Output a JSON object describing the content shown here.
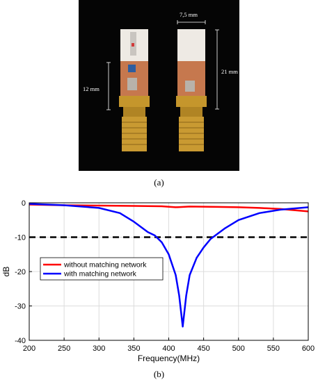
{
  "photo": {
    "caption": "(a)",
    "width_label": "7,5 mm",
    "height_left_label": "12 mm",
    "height_right_label": "21 mm"
  },
  "chart_caption": "(b)",
  "chart_data": {
    "type": "line",
    "xlabel": "Frequency(MHz)",
    "ylabel": "dB",
    "xlim": [
      200,
      600
    ],
    "ylim": [
      -40,
      0
    ],
    "xticks": [
      200,
      250,
      300,
      350,
      400,
      450,
      500,
      550,
      600
    ],
    "yticks": [
      0,
      -10,
      -20,
      -30,
      -40
    ],
    "grid": true,
    "legend_position": "middle-left",
    "reference_line": {
      "y": -10,
      "style": "dashed",
      "color": "#000000"
    },
    "series": [
      {
        "name": "without matching network",
        "color": "#ff0000",
        "x": [
          200,
          250,
          300,
          350,
          390,
          410,
          430,
          470,
          500,
          530,
          560,
          600
        ],
        "y": [
          -0.5,
          -0.7,
          -0.8,
          -0.9,
          -1.0,
          -1.3,
          -1.1,
          -1.2,
          -1.3,
          -1.5,
          -1.8,
          -2.5
        ]
      },
      {
        "name": "with matching network",
        "color": "#0000ff",
        "x": [
          200,
          250,
          300,
          330,
          350,
          370,
          380,
          390,
          400,
          410,
          415,
          420,
          425,
          430,
          440,
          450,
          460,
          480,
          500,
          530,
          560,
          600
        ],
        "y": [
          -0.3,
          -0.7,
          -1.5,
          -3.0,
          -5.5,
          -8.5,
          -9.5,
          -11.5,
          -15.0,
          -21.0,
          -27.0,
          -36.0,
          -27.0,
          -21.0,
          -16.0,
          -13.0,
          -10.5,
          -7.5,
          -5.0,
          -3.0,
          -2.0,
          -1.3
        ]
      }
    ]
  }
}
